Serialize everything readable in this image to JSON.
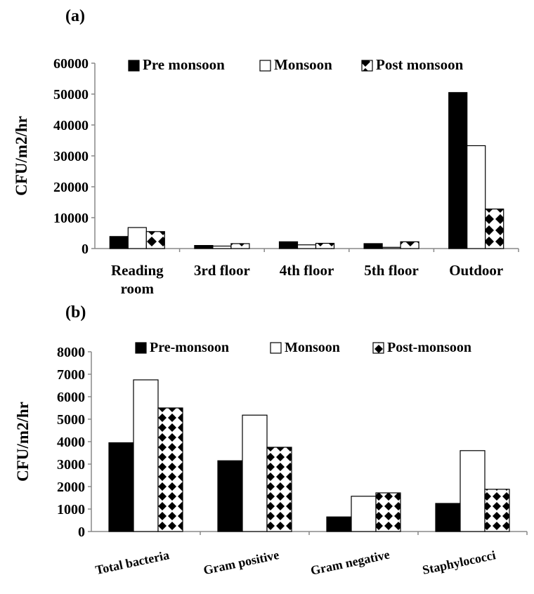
{
  "charts": [
    {
      "panel": "(a)",
      "chart_data": {
        "type": "bar",
        "categories": [
          "Reading room",
          "3rd floor",
          "4th floor",
          "5th floor",
          "Outdoor"
        ],
        "category_lines": [
          [
            "Reading",
            "room"
          ],
          [
            "3rd floor"
          ],
          [
            "4th floor"
          ],
          [
            "5th floor"
          ],
          [
            "Outdoor"
          ]
        ],
        "series": [
          {
            "name": "Pre monsoon",
            "fill": "solid",
            "color": "#000000",
            "values": [
              3900,
              1000,
              2200,
              1600,
              50500
            ]
          },
          {
            "name": "Monsoon",
            "fill": "hollow",
            "color": "#ffffff",
            "values": [
              6800,
              800,
              1200,
              400,
              33300
            ]
          },
          {
            "name": "Post monsoon",
            "fill": "diamond-pattern",
            "color": "#000000",
            "values": [
              5500,
              1600,
              1700,
              2200,
              12800
            ]
          }
        ],
        "ylabel": "CFU/m2/hr",
        "ylim": [
          0,
          60000
        ],
        "yticks": [
          "0",
          "10000",
          "20000",
          "30000",
          "40000",
          "50000",
          "60000"
        ],
        "grid": false,
        "legend_position": "top"
      }
    },
    {
      "panel": "(b)",
      "chart_data": {
        "type": "bar",
        "categories": [
          "Total bacteria",
          "Gram positive",
          "Gram negative",
          "Staphylococci"
        ],
        "series": [
          {
            "name": "Pre-monsoon",
            "fill": "solid",
            "color": "#000000",
            "values": [
              3950,
              3150,
              650,
              1250
            ]
          },
          {
            "name": "Monsoon",
            "fill": "hollow",
            "color": "#ffffff",
            "values": [
              6750,
              5180,
              1570,
              3600
            ]
          },
          {
            "name": "Post-monsoon",
            "fill": "diamond-pattern",
            "color": "#000000",
            "values": [
              5500,
              3750,
              1720,
              1880
            ]
          }
        ],
        "ylabel": "CFU/m2/hr",
        "ylim": [
          0,
          8000
        ],
        "yticks": [
          "0",
          "1000",
          "2000",
          "3000",
          "4000",
          "5000",
          "6000",
          "7000",
          "8000"
        ],
        "grid": false,
        "legend_position": "top",
        "xtick_rotation": "slanted"
      }
    }
  ]
}
